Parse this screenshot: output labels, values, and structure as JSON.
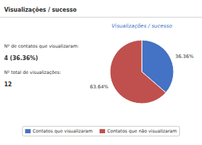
{
  "chart_data": {
    "type": "pie",
    "title": "Visualizações / sucesso",
    "annotations": [
      "Visualizações / sucesso",
      "Nº de contatos que visualizaram:",
      "4 (36.36%)",
      "Nº total de visualizações:",
      "12"
    ],
    "categories": [
      "Contatos que visualizaram",
      "Contatos que não visualizaram"
    ],
    "values": [
      36.36,
      63.64
    ],
    "value_labels": [
      "36.36%",
      "63.64%"
    ],
    "colors": [
      "#4472c4",
      "#c0504d"
    ],
    "data_labels": true,
    "legend": "bottom"
  }
}
